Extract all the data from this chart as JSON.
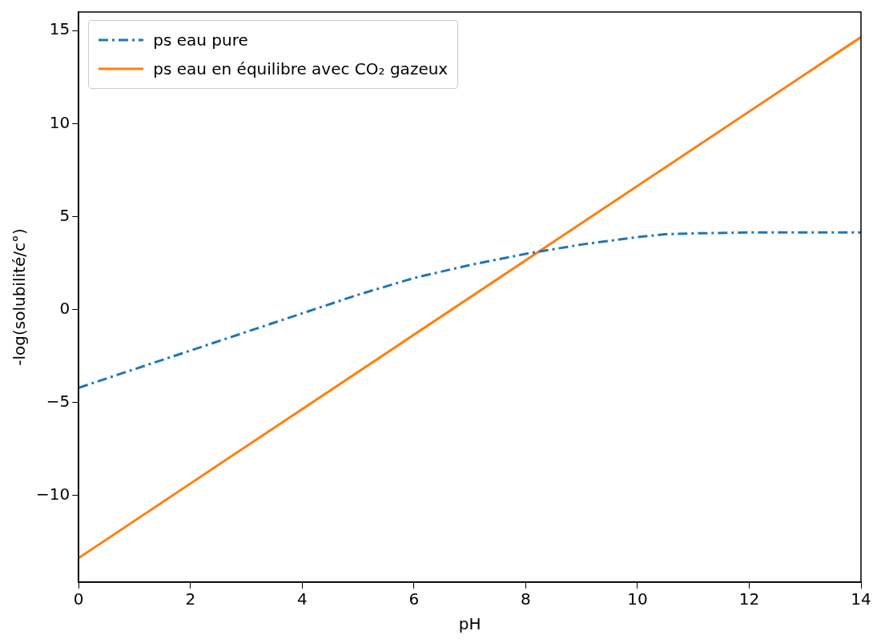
{
  "chart_data": {
    "type": "line",
    "xlabel": "pH",
    "ylabel": "-log(solubilité/c°)",
    "xlim": [
      0,
      14
    ],
    "xticks": [
      0,
      2,
      4,
      6,
      8,
      10,
      12,
      14
    ],
    "ylim": [
      -14.65,
      16
    ],
    "yticks": [
      -10,
      -5,
      0,
      5,
      10,
      15
    ],
    "grid": false,
    "legend": "top left",
    "series": [
      {
        "name": "ps eau pure",
        "color": "#1f77b4",
        "line_style": "dashed",
        "x": [
          0,
          1,
          2,
          3,
          4,
          5,
          6,
          7,
          8,
          9,
          10,
          10.5,
          11,
          12,
          13,
          14
        ],
        "values": [
          -4.2,
          -3.2,
          -2.2,
          -1.2,
          -0.2,
          0.8,
          1.7,
          2.4,
          3.0,
          3.5,
          3.9,
          4.05,
          4.1,
          4.15,
          4.15,
          4.15
        ]
      },
      {
        "name": "ps eau en équilibre avec CO₂ gazeux",
        "color": "#ff7f0e",
        "line_style": "solid",
        "x": [
          0,
          14
        ],
        "values": [
          -13.35,
          14.65
        ]
      }
    ]
  }
}
